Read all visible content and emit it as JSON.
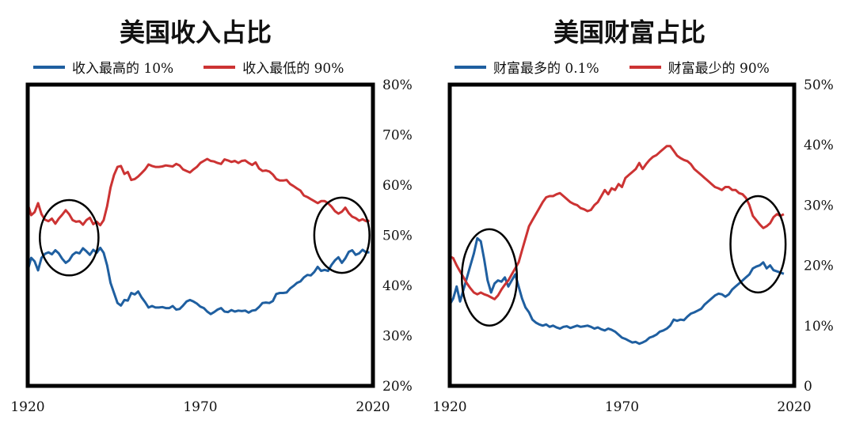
{
  "colors": {
    "top": "#1f5fa0",
    "bottom": "#cc3333",
    "frame": "#000000"
  },
  "chart_data": [
    {
      "type": "line",
      "title": "美国收入占比",
      "xlabel": "",
      "ylabel": "",
      "xlim": [
        1920,
        2020
      ],
      "ylim": [
        20,
        80
      ],
      "x_ticks": [
        1920,
        1970,
        2020
      ],
      "y_ticks": [
        20,
        30,
        40,
        50,
        60,
        70,
        80
      ],
      "y_tick_labels": [
        "20%",
        "30%",
        "40%",
        "50%",
        "60%",
        "70%",
        "80%"
      ],
      "y_axis_side": "right",
      "legend_position": "top",
      "annotations": [
        {
          "type": "circle",
          "x": 1932,
          "y": 49.5,
          "rx": 8.5,
          "ry": 7.5
        },
        {
          "type": "circle",
          "x": 2011,
          "y": 50,
          "rx": 8,
          "ry": 7.5
        }
      ],
      "series": [
        {
          "name": "收入最高的 10%",
          "color_key": "top",
          "x": [
            1920,
            1921,
            1922,
            1923,
            1924,
            1925,
            1926,
            1927,
            1928,
            1929,
            1930,
            1931,
            1932,
            1933,
            1934,
            1935,
            1936,
            1937,
            1938,
            1939,
            1940,
            1941,
            1942,
            1943,
            1944,
            1945,
            1946,
            1947,
            1948,
            1949,
            1950,
            1951,
            1952,
            1953,
            1954,
            1955,
            1956,
            1957,
            1958,
            1959,
            1960,
            1961,
            1962,
            1963,
            1964,
            1965,
            1966,
            1967,
            1968,
            1969,
            1970,
            1971,
            1972,
            1973,
            1974,
            1975,
            1976,
            1977,
            1978,
            1979,
            1980,
            1981,
            1982,
            1983,
            1984,
            1985,
            1986,
            1987,
            1988,
            1989,
            1990,
            1991,
            1992,
            1993,
            1994,
            1995,
            1996,
            1997,
            1998,
            1999,
            2000,
            2001,
            2002,
            2003,
            2004,
            2005,
            2006,
            2007,
            2008,
            2009,
            2010,
            2011,
            2012,
            2013,
            2014,
            2015,
            2016,
            2017,
            2018,
            2019
          ],
          "values": [
            43.0,
            45.5,
            44.8,
            43.0,
            45.5,
            46.3,
            46.6,
            46.2,
            47.0,
            46.4,
            45.3,
            44.5,
            45.0,
            46.1,
            46.6,
            46.4,
            47.4,
            46.8,
            46.1,
            47.1,
            46.5,
            47.5,
            46.5,
            44.0,
            40.5,
            38.5,
            36.5,
            36.0,
            37.1,
            37.0,
            38.5,
            38.2,
            38.8,
            37.6,
            36.7,
            35.6,
            35.9,
            35.6,
            35.6,
            35.7,
            35.5,
            35.5,
            35.9,
            35.2,
            35.3,
            36.0,
            36.8,
            37.1,
            36.8,
            36.4,
            35.8,
            35.5,
            34.8,
            34.3,
            34.7,
            35.2,
            35.5,
            34.8,
            34.7,
            35.1,
            34.8,
            35.0,
            34.9,
            35.0,
            34.6,
            35.0,
            35.1,
            35.7,
            36.5,
            36.6,
            36.5,
            36.9,
            38.3,
            38.5,
            38.5,
            38.6,
            39.4,
            39.9,
            40.5,
            40.8,
            41.6,
            42.1,
            42.0,
            42.7,
            43.7,
            42.9,
            43.1,
            42.9,
            44.1,
            45.0,
            45.6,
            44.5,
            45.4,
            46.7,
            47.0,
            46.1,
            46.4,
            47.1,
            46.6,
            46.6
          ]
        },
        {
          "name": "收入最低的 90%",
          "color_key": "bottom",
          "x": [
            1920,
            1921,
            1922,
            1923,
            1924,
            1925,
            1926,
            1927,
            1928,
            1929,
            1930,
            1931,
            1932,
            1933,
            1934,
            1935,
            1936,
            1937,
            1938,
            1939,
            1940,
            1941,
            1942,
            1943,
            1944,
            1945,
            1946,
            1947,
            1948,
            1949,
            1950,
            1951,
            1952,
            1953,
            1954,
            1955,
            1956,
            1957,
            1958,
            1959,
            1960,
            1961,
            1962,
            1963,
            1964,
            1965,
            1966,
            1967,
            1968,
            1969,
            1970,
            1971,
            1972,
            1973,
            1974,
            1975,
            1976,
            1977,
            1978,
            1979,
            1980,
            1981,
            1982,
            1983,
            1984,
            1985,
            1986,
            1987,
            1988,
            1989,
            1990,
            1991,
            1992,
            1993,
            1994,
            1995,
            1996,
            1997,
            1998,
            1999,
            2000,
            2001,
            2002,
            2003,
            2004,
            2005,
            2006,
            2007,
            2008,
            2009,
            2010,
            2011,
            2012,
            2013,
            2014,
            2015,
            2016,
            2017,
            2018,
            2019
          ],
          "values": [
            56.2,
            54.0,
            54.6,
            56.4,
            54.2,
            53.1,
            52.8,
            53.3,
            52.3,
            53.3,
            54.1,
            55.0,
            54.2,
            53.0,
            52.7,
            52.8,
            52.1,
            53.0,
            53.5,
            52.2,
            52.7,
            52.0,
            53.0,
            55.8,
            59.5,
            62.0,
            63.6,
            63.8,
            62.2,
            62.6,
            61.0,
            61.2,
            61.7,
            62.4,
            63.1,
            64.1,
            63.8,
            63.6,
            63.6,
            63.7,
            63.9,
            63.8,
            63.7,
            64.2,
            63.9,
            63.1,
            62.8,
            62.5,
            63.1,
            63.6,
            64.4,
            64.8,
            65.2,
            64.8,
            64.7,
            64.4,
            64.2,
            65.1,
            64.9,
            64.6,
            64.8,
            64.4,
            64.8,
            64.9,
            64.4,
            64.0,
            64.5,
            63.3,
            62.8,
            62.9,
            62.7,
            62.1,
            61.2,
            60.9,
            60.9,
            61.0,
            60.2,
            59.8,
            59.3,
            58.9,
            57.9,
            57.6,
            57.2,
            56.8,
            56.4,
            56.8,
            56.8,
            56.4,
            55.7,
            54.8,
            54.3,
            54.7,
            55.5,
            54.4,
            53.7,
            53.4,
            52.9,
            53.2,
            52.8,
            52.9
          ]
        }
      ]
    },
    {
      "type": "line",
      "title": "美国财富占比",
      "xlabel": "",
      "ylabel": "",
      "xlim": [
        1920,
        2020
      ],
      "ylim": [
        0,
        50
      ],
      "x_ticks": [
        1920,
        1970,
        2020
      ],
      "y_ticks": [
        0,
        10,
        20,
        30,
        40,
        50
      ],
      "y_tick_labels": [
        "0",
        "10%",
        "20%",
        "30%",
        "40%",
        "50%"
      ],
      "y_axis_side": "right",
      "legend_position": "top",
      "annotations": [
        {
          "type": "circle",
          "x": 1931.5,
          "y": 18,
          "rx": 8,
          "ry": 8
        },
        {
          "type": "circle",
          "x": 2009.5,
          "y": 23.5,
          "rx": 8,
          "ry": 8
        }
      ],
      "series": [
        {
          "name": "财富最多的 0.1%",
          "color_key": "top",
          "x": [
            1920,
            1921,
            1922,
            1923,
            1924,
            1925,
            1926,
            1927,
            1928,
            1929,
            1930,
            1931,
            1932,
            1933,
            1934,
            1935,
            1936,
            1937,
            1938,
            1939,
            1940,
            1941,
            1942,
            1943,
            1944,
            1945,
            1946,
            1947,
            1948,
            1949,
            1950,
            1951,
            1952,
            1953,
            1954,
            1955,
            1956,
            1957,
            1958,
            1959,
            1960,
            1961,
            1962,
            1963,
            1964,
            1965,
            1966,
            1967,
            1968,
            1969,
            1970,
            1971,
            1972,
            1973,
            1974,
            1975,
            1976,
            1977,
            1978,
            1979,
            1980,
            1981,
            1982,
            1983,
            1984,
            1985,
            1986,
            1987,
            1988,
            1989,
            1990,
            1991,
            1992,
            1993,
            1994,
            1995,
            1996,
            1997,
            1998,
            1999,
            2000,
            2001,
            2002,
            2003,
            2004,
            2005,
            2006,
            2007,
            2008,
            2009,
            2010,
            2011,
            2012,
            2013,
            2014,
            2015,
            2016,
            2017
          ],
          "values": [
            13.5,
            14.5,
            16.5,
            14.0,
            16.0,
            18.0,
            20.0,
            22.0,
            24.5,
            24.0,
            21.0,
            17.5,
            15.5,
            17.0,
            17.5,
            17.3,
            18.0,
            16.5,
            17.5,
            18.5,
            16.5,
            14.5,
            13.0,
            12.2,
            11.0,
            10.5,
            10.2,
            10.0,
            10.2,
            9.8,
            10.0,
            9.7,
            9.5,
            9.8,
            9.9,
            9.6,
            9.8,
            10.0,
            9.8,
            9.9,
            10.0,
            9.8,
            9.5,
            9.7,
            9.4,
            9.2,
            9.5,
            9.3,
            9.0,
            8.5,
            8.0,
            7.8,
            7.5,
            7.2,
            7.3,
            7.0,
            7.2,
            7.5,
            8.0,
            8.2,
            8.5,
            9.0,
            9.2,
            9.5,
            10.0,
            11.0,
            10.8,
            11.0,
            10.9,
            11.5,
            12.0,
            12.2,
            12.5,
            12.8,
            13.5,
            14.0,
            14.5,
            15.0,
            15.3,
            15.2,
            14.8,
            15.2,
            16.0,
            16.5,
            17.0,
            17.5,
            18.0,
            18.5,
            19.5,
            19.8,
            20.0,
            20.5,
            19.5,
            20.0,
            19.2,
            19.0,
            18.8,
            18.6
          ]
        },
        {
          "name": "财富最少的 90%",
          "color_key": "bottom",
          "x": [
            1920,
            1921,
            1922,
            1923,
            1924,
            1925,
            1926,
            1927,
            1928,
            1929,
            1930,
            1931,
            1932,
            1933,
            1934,
            1935,
            1936,
            1937,
            1938,
            1939,
            1940,
            1941,
            1942,
            1943,
            1944,
            1945,
            1946,
            1947,
            1948,
            1949,
            1950,
            1951,
            1952,
            1953,
            1954,
            1955,
            1956,
            1957,
            1958,
            1959,
            1960,
            1961,
            1962,
            1963,
            1964,
            1965,
            1966,
            1967,
            1968,
            1969,
            1970,
            1971,
            1972,
            1973,
            1974,
            1975,
            1976,
            1977,
            1978,
            1979,
            1980,
            1981,
            1982,
            1983,
            1984,
            1985,
            1986,
            1987,
            1988,
            1989,
            1990,
            1991,
            1992,
            1993,
            1994,
            1995,
            1996,
            1997,
            1998,
            1999,
            2000,
            2001,
            2002,
            2003,
            2004,
            2005,
            2006,
            2007,
            2008,
            2009,
            2010,
            2011,
            2012,
            2013,
            2014,
            2015,
            2016,
            2017
          ],
          "values": [
            21.5,
            21.2,
            20.0,
            19.0,
            18.0,
            17.0,
            16.2,
            15.5,
            15.2,
            15.5,
            15.2,
            15.0,
            14.7,
            14.4,
            15.0,
            16.0,
            16.8,
            17.5,
            18.5,
            19.5,
            20.5,
            22.5,
            24.5,
            26.5,
            27.5,
            28.5,
            29.5,
            30.5,
            31.3,
            31.5,
            31.5,
            31.8,
            32.0,
            31.5,
            31.0,
            30.5,
            30.2,
            30.0,
            29.5,
            29.3,
            29.0,
            29.2,
            30.0,
            30.5,
            31.5,
            32.5,
            31.8,
            32.8,
            32.5,
            33.5,
            33.0,
            34.5,
            35.0,
            35.5,
            36.0,
            37.0,
            36.0,
            36.8,
            37.5,
            38.0,
            38.3,
            38.8,
            39.3,
            39.8,
            39.8,
            39.0,
            38.2,
            37.8,
            37.5,
            37.3,
            36.8,
            36.0,
            35.5,
            35.0,
            34.5,
            34.0,
            33.5,
            33.0,
            32.8,
            32.5,
            33.0,
            33.0,
            32.5,
            32.5,
            32.0,
            31.8,
            31.2,
            30.0,
            28.2,
            27.5,
            26.8,
            26.2,
            26.5,
            27.0,
            28.0,
            28.5,
            28.2,
            28.5
          ]
        }
      ]
    }
  ]
}
